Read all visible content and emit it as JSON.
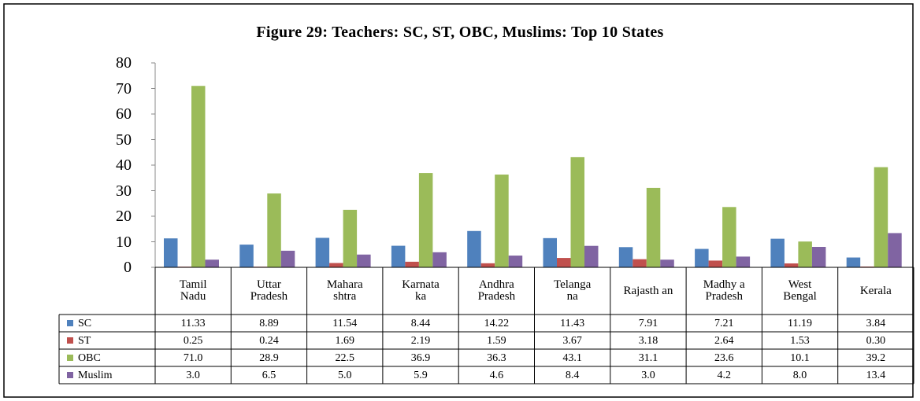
{
  "chart_data": {
    "type": "bar",
    "title": "Figure 29: Teachers: SC, ST, OBC, Muslims: Top 10 States",
    "categories": [
      "Tamil Nadu",
      "Uttar Pradesh",
      "Mahara shtra",
      "Karnata ka",
      "Andhra Pradesh",
      "Telanga na",
      "Rajasth an",
      "Madhy a Pradesh",
      "West Bengal",
      "Kerala"
    ],
    "series": [
      {
        "name": "SC",
        "color": "#4f81bd",
        "values": [
          11.33,
          8.89,
          11.54,
          8.44,
          14.22,
          11.43,
          7.91,
          7.21,
          11.19,
          3.84
        ],
        "value_labels": [
          "11.33",
          "8.89",
          "11.54",
          "8.44",
          "14.22",
          "11.43",
          "7.91",
          "7.21",
          "11.19",
          "3.84"
        ]
      },
      {
        "name": "ST",
        "color": "#c0504d",
        "values": [
          0.25,
          0.24,
          1.69,
          2.19,
          1.59,
          3.67,
          3.18,
          2.64,
          1.53,
          0.3
        ],
        "value_labels": [
          "0.25",
          "0.24",
          "1.69",
          "2.19",
          "1.59",
          "3.67",
          "3.18",
          "2.64",
          "1.53",
          "0.30"
        ]
      },
      {
        "name": "OBC",
        "color": "#9bbb59",
        "values": [
          71,
          28.9,
          22.5,
          36.9,
          36.3,
          43.1,
          31.1,
          23.6,
          10.1,
          39.2
        ],
        "value_labels": [
          "71.0",
          "28.9",
          "22.5",
          "36.9",
          "36.3",
          "43.1",
          "31.1",
          "23.6",
          "10.1",
          "39.2"
        ]
      },
      {
        "name": "Muslim",
        "color": "#8064a2",
        "values": [
          3,
          6.5,
          5,
          5.9,
          4.6,
          8.4,
          3,
          4.2,
          8,
          13.4
        ],
        "value_labels": [
          "3.0",
          "6.5",
          "5.0",
          "5.9",
          "4.6",
          "8.4",
          "3.0",
          "4.2",
          "8.0",
          "13.4"
        ]
      }
    ],
    "ylim": [
      0,
      80
    ],
    "yticks": [
      0,
      10,
      20,
      30,
      40,
      50,
      60,
      70,
      80
    ],
    "grid": false
  }
}
